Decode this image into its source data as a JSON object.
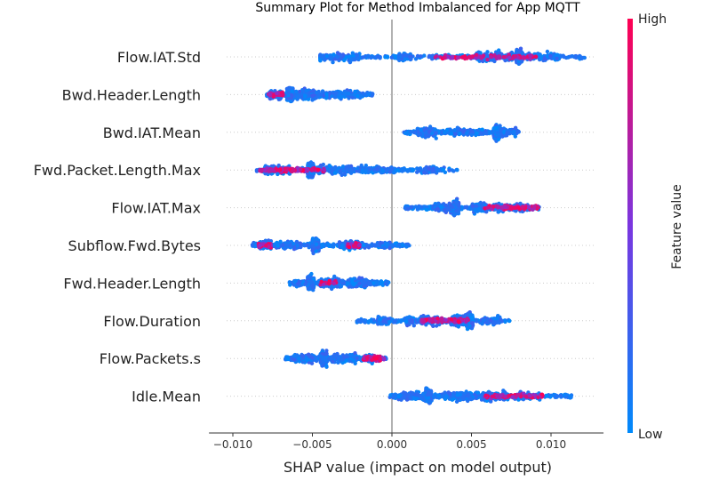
{
  "chart_data": {
    "type": "scatter",
    "title": "Summary Plot for Method Imbalanced for App MQTT",
    "xlabel": "SHAP value (impact on model output)",
    "xlim": [
      -0.0115,
      0.0133
    ],
    "xticks": [
      {
        "value": -0.01,
        "label": "−0.010"
      },
      {
        "value": -0.005,
        "label": "−0.005"
      },
      {
        "value": 0.0,
        "label": "0.000"
      },
      {
        "value": 0.005,
        "label": "0.005"
      },
      {
        "value": 0.01,
        "label": "0.010"
      }
    ],
    "colorbar": {
      "label": "Feature value",
      "high": "High",
      "low": "Low",
      "low_color": "#008afb",
      "high_color": "#ff0052"
    },
    "grid": "dotted horizontal per feature",
    "features": [
      {
        "name": "Flow.IAT.Std",
        "min": -0.0045,
        "max": 0.0122,
        "low_hi": [
          0.003,
          0.009
        ],
        "clusters": [
          [
            -0.0035,
            0.5,
            0.0015
          ],
          [
            0.0008,
            0.3,
            0.0004
          ],
          [
            0.008,
            1.0,
            0.0002
          ],
          [
            0.0065,
            0.6,
            0.0012
          ],
          [
            0.0095,
            0.4,
            0.0012
          ]
        ],
        "pink": [
          [
            0.0027,
            0.0092,
            0.6
          ]
        ]
      },
      {
        "name": "Bwd.Header.Length",
        "min": -0.0079,
        "max": -0.0012,
        "low_hi": [
          -0.0075,
          -0.004
        ],
        "clusters": [
          [
            -0.0064,
            1.0,
            0.0002
          ],
          [
            -0.0055,
            0.6,
            0.0008
          ],
          [
            -0.0045,
            0.4,
            0.001
          ],
          [
            -0.0073,
            0.5,
            0.0004
          ],
          [
            -0.0028,
            0.5,
            0.0008
          ]
        ],
        "pink": [
          [
            -0.0078,
            -0.0068,
            0.2
          ]
        ]
      },
      {
        "name": "Bwd.IAT.Mean",
        "min": 0.0007,
        "max": 0.008,
        "low_hi": [
          0.0,
          0.0
        ],
        "clusters": [
          [
            0.0066,
            1.0,
            0.0002
          ],
          [
            0.0022,
            0.6,
            0.0006
          ],
          [
            0.0045,
            0.4,
            0.0012
          ],
          [
            0.0072,
            0.4,
            0.0006
          ]
        ],
        "pink": []
      },
      {
        "name": "Fwd.Packet.Length.Max",
        "min": -0.0085,
        "max": 0.0042,
        "low_hi": [
          -0.008,
          -0.0045
        ],
        "clusters": [
          [
            -0.0051,
            1.0,
            0.0002
          ],
          [
            -0.0072,
            0.6,
            0.0008
          ],
          [
            -0.0035,
            0.6,
            0.0012
          ],
          [
            -0.001,
            0.4,
            0.0012
          ],
          [
            0.0024,
            0.3,
            0.0004
          ]
        ],
        "pink": [
          [
            -0.0083,
            -0.0042,
            0.7
          ]
        ]
      },
      {
        "name": "Flow.IAT.Max",
        "min": 0.0008,
        "max": 0.0093,
        "low_hi": [
          0.0062,
          0.0092
        ],
        "clusters": [
          [
            0.004,
            1.0,
            0.0002
          ],
          [
            0.0033,
            0.5,
            0.0006
          ],
          [
            0.006,
            0.6,
            0.001
          ],
          [
            0.008,
            0.4,
            0.0008
          ]
        ],
        "pink": [
          [
            0.0058,
            0.0092,
            0.5
          ]
        ]
      },
      {
        "name": "Subflow.Fwd.Bytes",
        "min": -0.0088,
        "max": 0.0011,
        "low_hi": [
          -0.0085,
          -0.002
        ],
        "clusters": [
          [
            -0.0048,
            1.0,
            0.0002
          ],
          [
            -0.008,
            0.5,
            0.0004
          ],
          [
            -0.0065,
            0.4,
            0.0008
          ],
          [
            -0.0025,
            0.5,
            0.0008
          ],
          [
            -0.0005,
            0.3,
            0.0004
          ]
        ],
        "pink": [
          [
            -0.0084,
            -0.0076,
            0.3
          ],
          [
            -0.0028,
            -0.002,
            0.3
          ]
        ]
      },
      {
        "name": "Fwd.Header.Length",
        "min": -0.0065,
        "max": -0.0002,
        "low_hi": [
          -0.0055,
          -0.003
        ],
        "clusters": [
          [
            -0.0051,
            1.0,
            0.0002
          ],
          [
            -0.0038,
            0.6,
            0.0008
          ],
          [
            -0.0022,
            0.6,
            0.0006
          ],
          [
            -0.0058,
            0.3,
            0.0004
          ]
        ],
        "pink": [
          [
            -0.0045,
            -0.0035,
            0.1
          ]
        ]
      },
      {
        "name": "Flow.Duration",
        "min": -0.0022,
        "max": 0.0074,
        "low_hi": [
          0.0015,
          0.0045
        ],
        "clusters": [
          [
            0.0049,
            1.0,
            0.0002
          ],
          [
            -0.0005,
            0.4,
            0.0004
          ],
          [
            0.002,
            0.6,
            0.0012
          ],
          [
            0.0042,
            0.8,
            0.0005
          ],
          [
            0.0062,
            0.4,
            0.0006
          ]
        ],
        "pink": [
          [
            0.0018,
            0.0048,
            0.6
          ]
        ]
      },
      {
        "name": "Flow.Packets.s",
        "min": -0.0067,
        "max": -0.0003,
        "low_hi": [
          -0.0025,
          -0.0004
        ],
        "clusters": [
          [
            -0.0043,
            1.0,
            0.0002
          ],
          [
            -0.0055,
            0.5,
            0.0008
          ],
          [
            -0.003,
            0.5,
            0.0008
          ],
          [
            -0.0015,
            0.3,
            0.0004
          ]
        ],
        "pink": [
          [
            -0.0018,
            -0.0005,
            0.5
          ]
        ]
      },
      {
        "name": "Idle.Mean",
        "min": -0.0002,
        "max": 0.0114,
        "low_hi": [
          0.0055,
          0.0095
        ],
        "clusters": [
          [
            0.0023,
            1.0,
            0.0002
          ],
          [
            0.0012,
            0.5,
            0.0008
          ],
          [
            0.0045,
            0.6,
            0.0012
          ],
          [
            0.0065,
            0.6,
            0.0008
          ],
          [
            0.0085,
            0.4,
            0.0008
          ]
        ],
        "pink": [
          [
            0.0058,
            0.0095,
            0.5
          ]
        ]
      }
    ]
  }
}
